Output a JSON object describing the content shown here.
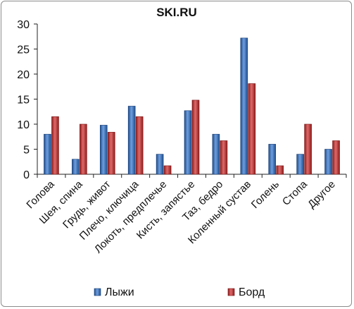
{
  "chart_data": {
    "type": "bar",
    "title": "SKI.RU",
    "categories": [
      "Голова",
      "Шея, спина",
      "Грудь, живот",
      "Плечо, ключица",
      "Локоть, предплечье",
      "Кисть, запястье",
      "Таз, бедро",
      "Коленный сустав",
      "Голень",
      "Стопа",
      "Другое"
    ],
    "series": [
      {
        "name": "Лыжи",
        "color": "#3d6fb8",
        "values": [
          8,
          3,
          9.8,
          13.6,
          4,
          12.7,
          8,
          27.2,
          6,
          4,
          5
        ]
      },
      {
        "name": "Борд",
        "color": "#c0392b",
        "values": [
          11.5,
          10,
          8.4,
          11.5,
          1.7,
          14.8,
          6.7,
          18.1,
          1.7,
          10,
          6.7
        ]
      }
    ],
    "ylim": [
      0,
      30
    ],
    "yticks": [
      0,
      5,
      10,
      15,
      20,
      25,
      30
    ],
    "legend_position": "bottom",
    "grid": false
  }
}
